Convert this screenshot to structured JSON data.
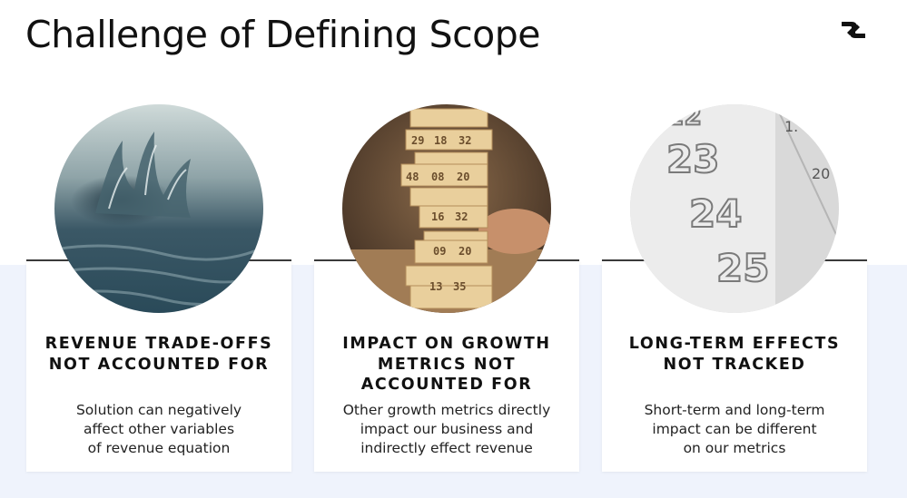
{
  "slide": {
    "title": "Challenge of Defining Scope",
    "logo_icon": "brand-logo-icon"
  },
  "cards": [
    {
      "image_icon": "water-splash-photo",
      "heading_lines": [
        "REVENUE TRADE-OFFS",
        "NOT ACCOUNTED FOR"
      ],
      "body_lines": [
        "Solution can negatively",
        "affect other variables",
        "of revenue equation"
      ]
    },
    {
      "image_icon": "jenga-tower-photo",
      "heading_lines": [
        "IMPACT ON GROWTH",
        "METRICS NOT",
        "ACCOUNTED FOR"
      ],
      "body_lines": [
        "Other growth metrics directly",
        "impact our business and",
        "indirectly effect revenue"
      ],
      "photo_numbers": [
        "29",
        "18",
        "32",
        "48",
        "08",
        "20",
        "16",
        "32",
        "09",
        "13",
        "35"
      ]
    },
    {
      "image_icon": "calendar-dates-photo",
      "heading_lines": [
        "LONG-TERM EFFECTS",
        "NOT TRACKED"
      ],
      "body_lines": [
        "Short-term and long-term",
        "impact can be different",
        "on our metrics"
      ],
      "photo_numbers": [
        "22",
        "23",
        "24",
        "25",
        "1",
        "20"
      ]
    }
  ],
  "colors": {
    "band": "#eff3fc",
    "card_rule": "#3a3a3a",
    "text": "#111111"
  }
}
